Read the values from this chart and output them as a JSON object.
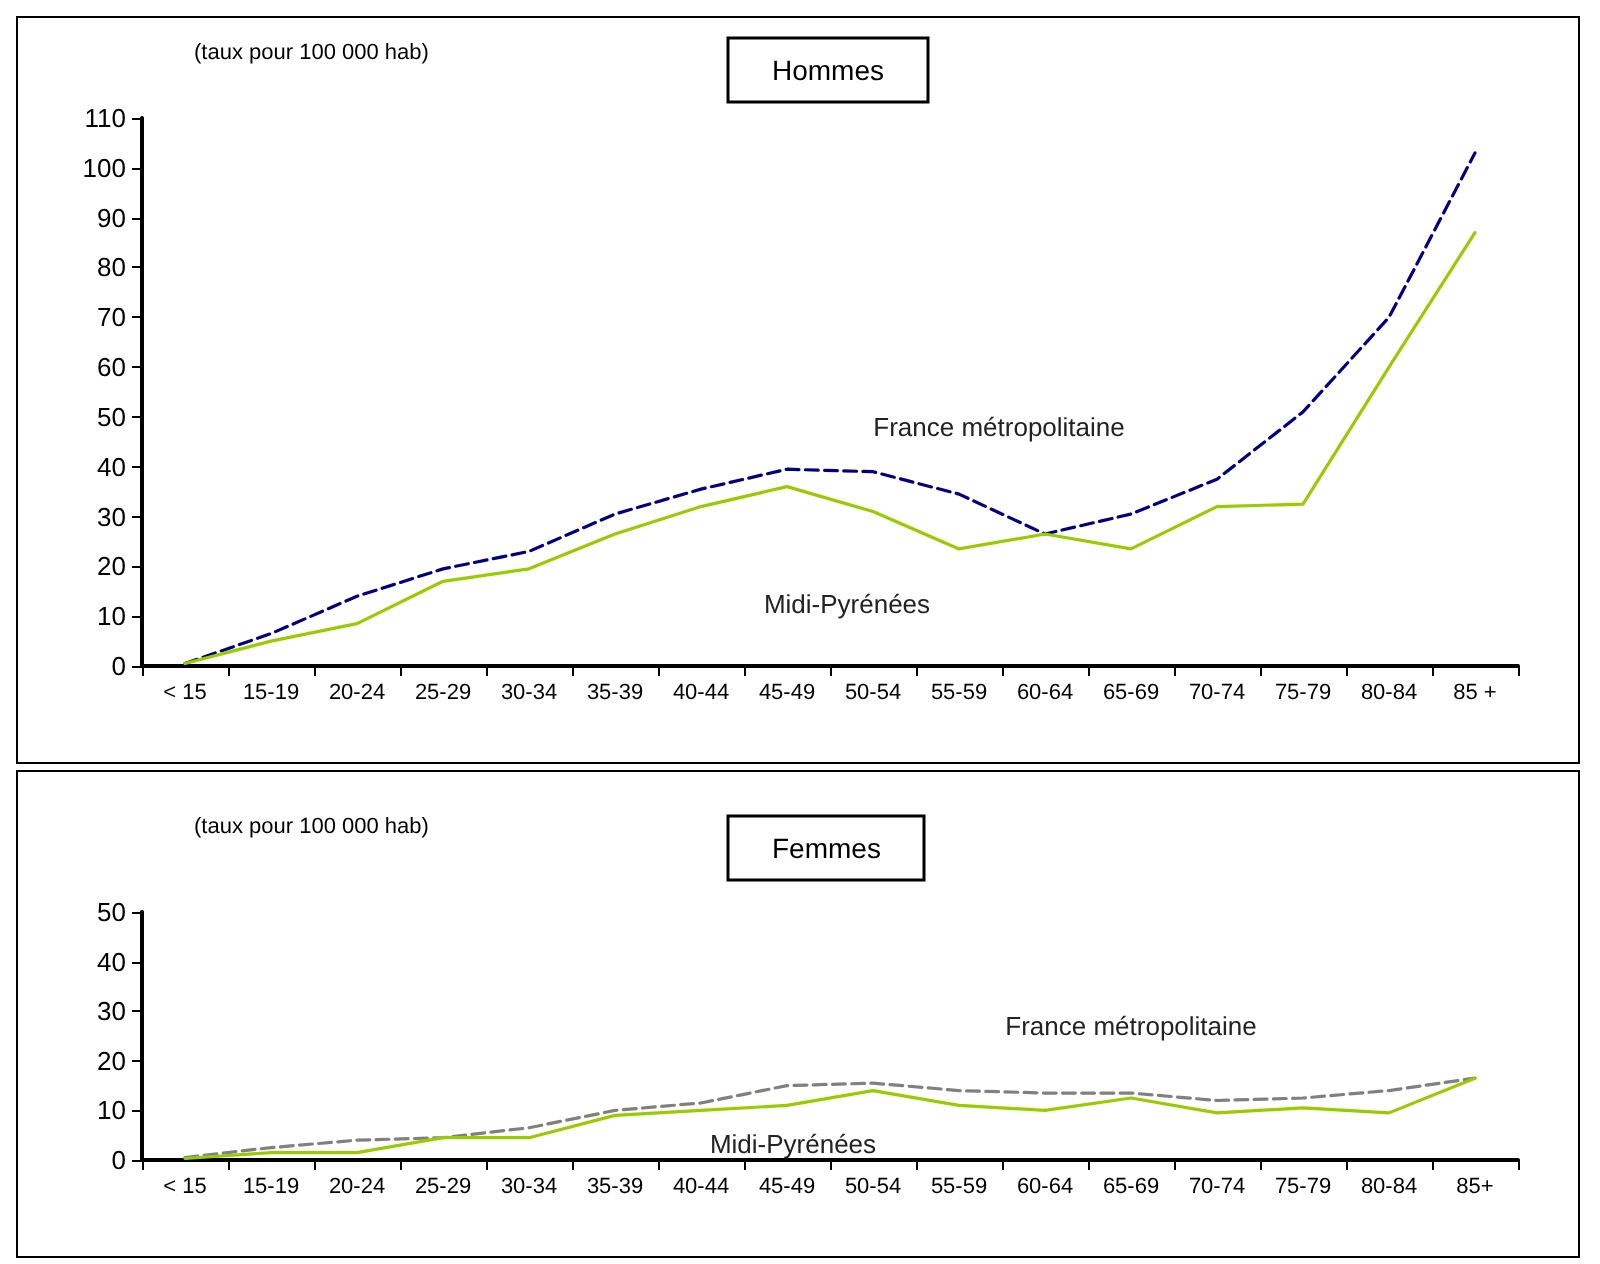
{
  "chart_data": [
    {
      "type": "line",
      "title": "Hommes",
      "ylabel": "(taux pour 100 000 hab)",
      "categories": [
        "< 15",
        "15-19",
        "20-24",
        "25-29",
        "30-34",
        "35-39",
        "40-44",
        "45-49",
        "50-54",
        "55-59",
        "60-64",
        "65-69",
        "70-74",
        "75-79",
        "80-84",
        "85 +"
      ],
      "series": [
        {
          "name": "France métropolitaine",
          "color": "#000080",
          "line_style": "dashed",
          "values": [
            0.5,
            6.5,
            14,
            19.5,
            23,
            30.5,
            35.5,
            39.5,
            39,
            34.5,
            26.5,
            30.5,
            37.5,
            51,
            70,
            103
          ]
        },
        {
          "name": "Midi-Pyrénées",
          "color": "#99cc00",
          "line_style": "solid",
          "values": [
            0.5,
            5,
            8.5,
            17,
            19.5,
            26.5,
            32,
            36,
            31,
            23.5,
            26.5,
            23.5,
            32,
            32.5,
            60,
            87
          ]
        }
      ],
      "ylim": [
        0,
        110
      ],
      "yticks": [
        0,
        10,
        20,
        30,
        40,
        50,
        60,
        70,
        80,
        90,
        100,
        110
      ],
      "grid": false,
      "legend": false,
      "marker": "none"
    },
    {
      "type": "line",
      "title": "Femmes",
      "ylabel": "(taux pour 100 000 hab)",
      "categories": [
        "< 15",
        "15-19",
        "20-24",
        "25-29",
        "30-34",
        "35-39",
        "40-44",
        "45-49",
        "50-54",
        "55-59",
        "60-64",
        "65-69",
        "70-74",
        "75-79",
        "80-84",
        "85+"
      ],
      "series": [
        {
          "name": "France métropolitaine",
          "color": "#808080",
          "line_style": "dashed",
          "values": [
            0.5,
            2.5,
            4,
            4.5,
            6.5,
            10,
            11.5,
            15,
            15.5,
            14,
            13.5,
            13.5,
            12,
            12.5,
            14,
            16.5
          ]
        },
        {
          "name": "Midi-Pyrénées",
          "color": "#99cc00",
          "line_style": "solid",
          "values": [
            0.3,
            1.5,
            1.5,
            4.5,
            4.5,
            9,
            10,
            11,
            14,
            11,
            10,
            12.5,
            9.5,
            10.5,
            9.5,
            16.5
          ]
        }
      ],
      "ylim": [
        0,
        50
      ],
      "yticks": [
        0,
        10,
        20,
        30,
        40,
        50
      ],
      "grid": false,
      "legend": false,
      "marker": "none"
    }
  ]
}
